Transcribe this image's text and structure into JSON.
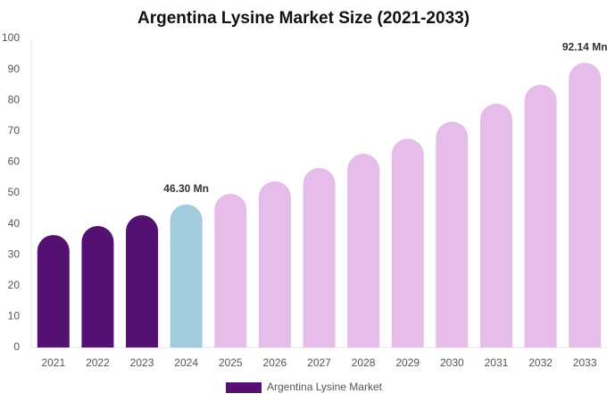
{
  "chart_data": {
    "type": "bar",
    "title": "Argentina Lysine Market Size (2021-2033)",
    "categories": [
      "2021",
      "2022",
      "2023",
      "2024",
      "2025",
      "2026",
      "2027",
      "2028",
      "2029",
      "2030",
      "2031",
      "2032",
      "2033"
    ],
    "series": [
      {
        "name": "Argentina Lysine Market",
        "color": "#541172",
        "colors": [
          "#541172",
          "#541172",
          "#541172",
          "#a4cade",
          "#e6bde8",
          "#e6bde8",
          "#e6bde8",
          "#e6bde8",
          "#e6bde8",
          "#e6bde8",
          "#e6bde8",
          "#e6bde8",
          "#e6bde8"
        ],
        "values": [
          36.4,
          39.3,
          42.8,
          46.3,
          49.7,
          53.8,
          58.1,
          62.7,
          67.6,
          73.1,
          78.9,
          85,
          92.14
        ],
        "value_labels": [
          null,
          null,
          null,
          "46.30 Mn",
          null,
          null,
          null,
          null,
          null,
          null,
          null,
          null,
          "92.14 Mn"
        ]
      }
    ],
    "ylim": [
      0,
      100
    ],
    "yticks": [
      0,
      10,
      20,
      30,
      40,
      50,
      60,
      70,
      80,
      90,
      100
    ],
    "grid": false,
    "legend": "bottom"
  }
}
